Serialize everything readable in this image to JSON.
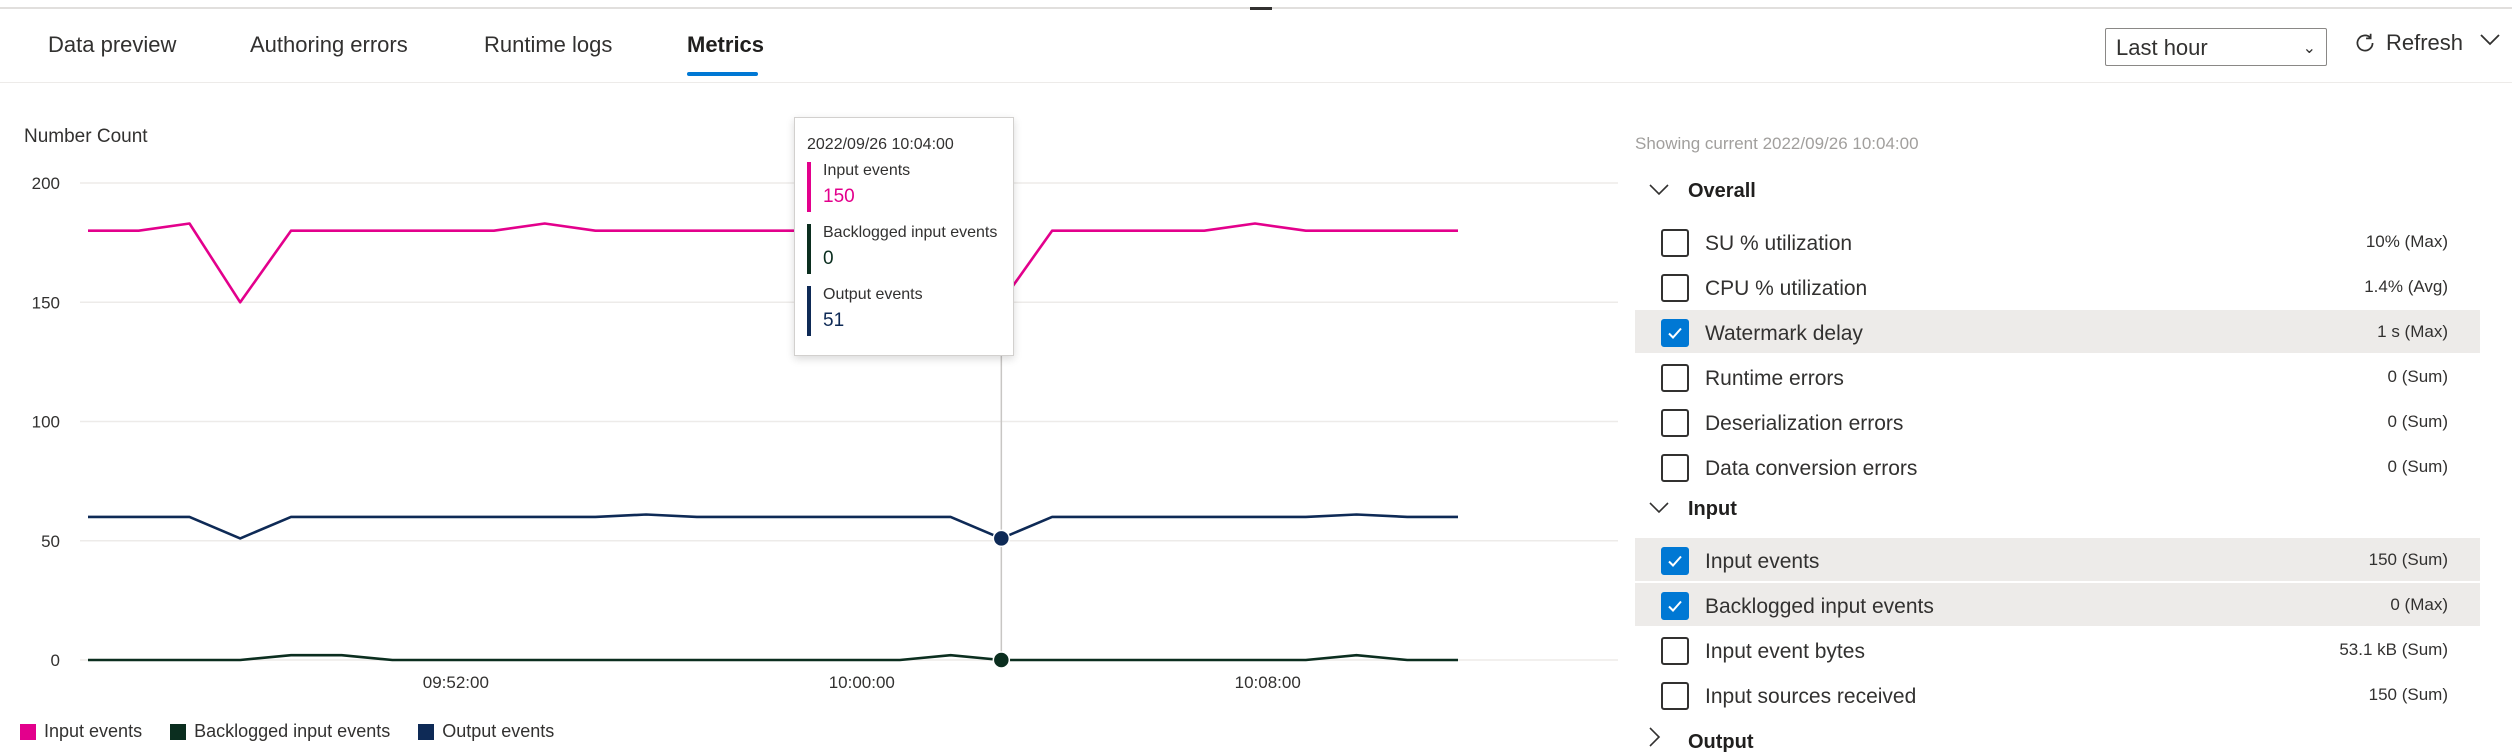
{
  "tabs": [
    {
      "label": "Data preview"
    },
    {
      "label": "Authoring errors"
    },
    {
      "label": "Runtime logs"
    },
    {
      "label": "Metrics"
    }
  ],
  "time_range": {
    "selected": "Last hour"
  },
  "refresh_label": "Refresh",
  "chart_title": "Number Count",
  "chart_data": {
    "type": "line",
    "ylabel": "Number Count",
    "ylim": [
      0,
      200
    ],
    "y_ticks": [
      "200",
      "150",
      "100",
      "50",
      "0"
    ],
    "x_tick_labels": [
      "09:52:00",
      "10:00:00",
      "10:08:00"
    ],
    "grid": true,
    "legend_position": "bottom-left",
    "series": [
      {
        "name": "Input events",
        "color": "#e3008c",
        "values": [
          180,
          180,
          183,
          150,
          180,
          180,
          180,
          180,
          180,
          183,
          180,
          180,
          180,
          180,
          180,
          180,
          180,
          180,
          150,
          180,
          180,
          180,
          180,
          183,
          180,
          180,
          180,
          180
        ]
      },
      {
        "name": "Backlogged input events",
        "color": "#0b2e1f",
        "values": [
          0,
          0,
          0,
          0,
          2,
          2,
          0,
          0,
          0,
          0,
          0,
          0,
          0,
          0,
          0,
          0,
          0,
          2,
          0,
          0,
          0,
          0,
          0,
          0,
          0,
          2,
          0,
          0
        ]
      },
      {
        "name": "Output events",
        "color": "#0e2a56",
        "values": [
          60,
          60,
          60,
          51,
          60,
          60,
          60,
          60,
          60,
          60,
          60,
          61,
          60,
          60,
          60,
          60,
          60,
          60,
          51,
          60,
          60,
          60,
          60,
          60,
          60,
          61,
          60,
          60
        ]
      }
    ],
    "highlight_index": 18
  },
  "legend": [
    {
      "label": "Input events",
      "color": "#e3008c"
    },
    {
      "label": "Backlogged input events",
      "color": "#0b2e1f"
    },
    {
      "label": "Output events",
      "color": "#0e2a56"
    }
  ],
  "tooltip": {
    "date": "2022/09/26 10:04:00",
    "rows": [
      {
        "label": "Input events",
        "value": "150",
        "color": "#e3008c"
      },
      {
        "label": "Backlogged input events",
        "value": "0",
        "color": "#0b2e1f"
      },
      {
        "label": "Output events",
        "value": "51",
        "color": "#0e2a56"
      }
    ]
  },
  "showing_text": "Showing current 2022/09/26 10:04:00",
  "sections": {
    "overall": "Overall",
    "input": "Input",
    "output": "Output"
  },
  "overall_metrics": [
    {
      "label": "SU % utilization",
      "value": "10% (Max)",
      "checked": false
    },
    {
      "label": "CPU % utilization",
      "value": "1.4% (Avg)",
      "checked": false
    },
    {
      "label": "Watermark delay",
      "value": "1 s (Max)",
      "checked": true
    },
    {
      "label": "Runtime errors",
      "value": "0 (Sum)",
      "checked": false
    },
    {
      "label": "Deserialization errors",
      "value": "0 (Sum)",
      "checked": false
    },
    {
      "label": "Data conversion errors",
      "value": "0 (Sum)",
      "checked": false
    }
  ],
  "input_metrics": [
    {
      "label": "Input events",
      "value": "150 (Sum)",
      "checked": true
    },
    {
      "label": "Backlogged input events",
      "value": "0 (Max)",
      "checked": true
    },
    {
      "label": "Input event bytes",
      "value": "53.1 kB (Sum)",
      "checked": false
    },
    {
      "label": "Input sources received",
      "value": "150 (Sum)",
      "checked": false
    }
  ]
}
